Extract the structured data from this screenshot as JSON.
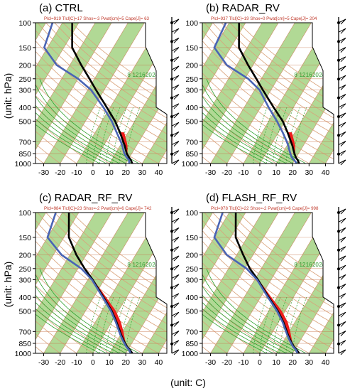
{
  "figure": {
    "ylabel": "(unit: hPa)",
    "xlabel": "(unit: C)"
  },
  "colors": {
    "band_green": "#a8d58a",
    "isotherm_red": "#c8734a",
    "dry_adiabat": "#d9a27a",
    "mixing_ratio": "#2ea02e",
    "temperature": "#000000",
    "dewpoint": "#4a64b4",
    "cape": "#ee1c1c"
  },
  "chart_data": [
    {
      "type": "line",
      "title": "(a) CTRL",
      "stats": "Plcl=919 Tlcl[C]=17 Shox=-3 Pwat[cm]=5 Cape[J]= 63",
      "y_ticks_hPa": [
        100,
        150,
        200,
        250,
        300,
        400,
        500,
        700,
        850,
        1000
      ],
      "x_ticks_C": [
        -30,
        -20,
        -10,
        0,
        10,
        20,
        30,
        40
      ],
      "mixing_ratio_labels": [
        "8",
        "12",
        "16",
        "20",
        "24",
        "28",
        "32"
      ],
      "series": [
        {
          "p": [
            1000,
            950,
            900,
            850,
            800,
            750,
            700,
            600,
            500,
            400,
            300,
            250,
            200,
            150,
            100
          ],
          "t": [
            24,
            22,
            19.5,
            17,
            15,
            13,
            10.5,
            5,
            -2,
            -12,
            -25,
            -33,
            -43,
            -55,
            -64
          ]
        },
        {
          "p": [
            1000,
            950,
            900,
            850,
            800,
            750,
            700,
            600,
            500,
            400,
            300,
            250,
            200,
            150,
            100
          ],
          "td": [
            22,
            21,
            18,
            15.5,
            13.5,
            11.5,
            9,
            3,
            -4,
            -14,
            -28,
            -40,
            -58,
            -72,
            -76
          ]
        }
      ]
    },
    {
      "type": "line",
      "title": "(b) RADAR_RV",
      "stats": "Plcl=937 Tlcl[C]=19 Shox=0 Pwat[cm]=5 Cape[J]= 204",
      "y_ticks_hPa": [
        100,
        150,
        200,
        250,
        300,
        400,
        500,
        700,
        850,
        1000
      ],
      "x_ticks_C": [
        -30,
        -20,
        -10,
        0,
        10,
        20,
        30,
        40
      ],
      "mixing_ratio_labels": [
        "8",
        "12",
        "16",
        "20",
        "24",
        "28",
        "32"
      ],
      "series": [
        {
          "p": [
            1000,
            950,
            900,
            850,
            800,
            750,
            700,
            600,
            500,
            400,
            300,
            250,
            200,
            150,
            100
          ],
          "t": [
            24,
            22,
            19.5,
            17.5,
            15.5,
            13.5,
            11,
            5.5,
            -1.5,
            -12,
            -25,
            -33,
            -43,
            -55,
            -64
          ]
        },
        {
          "p": [
            1000,
            950,
            900,
            850,
            800,
            750,
            700,
            600,
            500,
            400,
            300,
            250,
            200,
            150,
            100
          ],
          "td": [
            22.5,
            20,
            17,
            15,
            13,
            11,
            8.5,
            2.5,
            -5,
            -15,
            -27,
            -38,
            -56,
            -70,
            -72
          ]
        }
      ]
    },
    {
      "type": "line",
      "title": "(c) RADAR_RF_RV",
      "stats": "Plcl=984 Tlcl[C]=23 Shox=-2 Pwat[cm]=6 Cape[J]= 742",
      "y_ticks_hPa": [
        100,
        150,
        200,
        250,
        300,
        400,
        500,
        700,
        850,
        1000
      ],
      "x_ticks_C": [
        -30,
        -20,
        -10,
        0,
        10,
        20,
        30,
        40
      ],
      "mixing_ratio_labels": [
        "8",
        "12",
        "16",
        "20",
        "24",
        "28",
        "32"
      ],
      "series": [
        {
          "p": [
            1000,
            950,
            900,
            850,
            800,
            750,
            700,
            600,
            500,
            400,
            300,
            250,
            200,
            150,
            100
          ],
          "t": [
            24,
            21.5,
            18.5,
            16,
            13.5,
            11,
            8.5,
            3,
            -4,
            -14,
            -27,
            -36,
            -46,
            -57,
            -66
          ]
        },
        {
          "p": [
            1000,
            950,
            900,
            850,
            800,
            750,
            700,
            600,
            500,
            400,
            300,
            250,
            200,
            150,
            100
          ],
          "td": [
            23,
            21,
            18,
            15.5,
            13,
            10.5,
            8,
            2.5,
            -4.5,
            -14.5,
            -27.5,
            -38,
            -55,
            -70,
            -74
          ]
        }
      ]
    },
    {
      "type": "line",
      "title": "(d) FLASH_RF_RV",
      "stats": "Plcl=978 Tlcl[C]=22 Shox=-2 Pwat[cm]=6 Cape[J]= 998",
      "y_ticks_hPa": [
        100,
        150,
        200,
        250,
        300,
        400,
        500,
        700,
        850,
        1000
      ],
      "x_ticks_C": [
        -30,
        -20,
        -10,
        0,
        10,
        20,
        30,
        40
      ],
      "mixing_ratio_labels": [
        "8",
        "12",
        "16",
        "20",
        "24",
        "28",
        "32"
      ],
      "series": [
        {
          "p": [
            1000,
            950,
            900,
            850,
            800,
            750,
            700,
            600,
            500,
            400,
            300,
            250,
            200,
            150,
            100
          ],
          "t": [
            24,
            21.5,
            18.5,
            16,
            13.5,
            11,
            8.5,
            3,
            -4.5,
            -15,
            -28,
            -37,
            -46,
            -57,
            -66
          ]
        },
        {
          "p": [
            1000,
            950,
            900,
            850,
            800,
            750,
            700,
            600,
            500,
            400,
            300,
            250,
            200,
            150,
            100
          ],
          "td": [
            23,
            21,
            18,
            15.5,
            13,
            10.5,
            8,
            2.5,
            -5,
            -15.5,
            -28.5,
            -39,
            -56,
            -70,
            -74
          ]
        }
      ]
    }
  ]
}
